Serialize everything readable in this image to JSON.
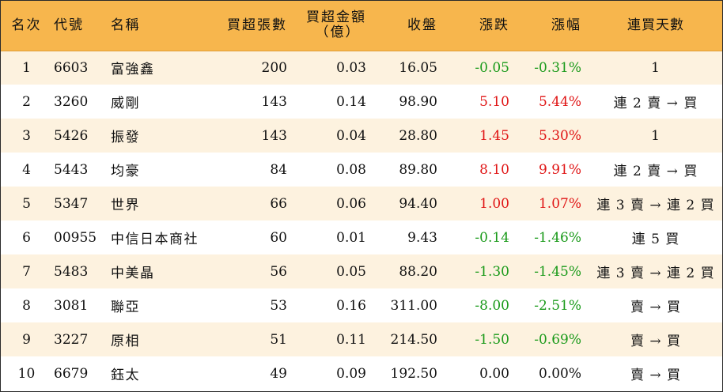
{
  "headers": {
    "rank": "名次",
    "code": "代號",
    "name": "名稱",
    "buy_over_lots": "買超張數",
    "buy_over_amount_line1": "買超金額",
    "buy_over_amount_line2": "（億）",
    "close": "收盤",
    "change": "漲跌",
    "change_pct": "漲幅",
    "streak": "連買天數"
  },
  "colors": {
    "header_bg": "#f7b64d",
    "odd_row_bg": "#fdf2df",
    "up": "#e01515",
    "down": "#1a9a1a",
    "flat": "#111111"
  },
  "rows": [
    {
      "rank": "1",
      "code": "6603",
      "name": "富強鑫",
      "lots": "200",
      "amount": "0.03",
      "close": "16.05",
      "change": "-0.05",
      "change_pct": "-0.31%",
      "direction": "down",
      "streak": "1"
    },
    {
      "rank": "2",
      "code": "3260",
      "name": "威剛",
      "lots": "143",
      "amount": "0.14",
      "close": "98.90",
      "change": "5.10",
      "change_pct": "5.44%",
      "direction": "up",
      "streak": "連 2 賣 → 買"
    },
    {
      "rank": "3",
      "code": "5426",
      "name": "振發",
      "lots": "143",
      "amount": "0.04",
      "close": "28.80",
      "change": "1.45",
      "change_pct": "5.30%",
      "direction": "up",
      "streak": "1"
    },
    {
      "rank": "4",
      "code": "5443",
      "name": "均豪",
      "lots": "84",
      "amount": "0.08",
      "close": "89.80",
      "change": "8.10",
      "change_pct": "9.91%",
      "direction": "up",
      "streak": "連 2 賣 → 買"
    },
    {
      "rank": "5",
      "code": "5347",
      "name": "世界",
      "lots": "66",
      "amount": "0.06",
      "close": "94.40",
      "change": "1.00",
      "change_pct": "1.07%",
      "direction": "up",
      "streak": "連 3 賣 → 連 2 買"
    },
    {
      "rank": "6",
      "code": "00955",
      "name": "中信日本商社",
      "lots": "60",
      "amount": "0.01",
      "close": "9.43",
      "change": "-0.14",
      "change_pct": "-1.46%",
      "direction": "down",
      "streak": "連 5 買"
    },
    {
      "rank": "7",
      "code": "5483",
      "name": "中美晶",
      "lots": "56",
      "amount": "0.05",
      "close": "88.20",
      "change": "-1.30",
      "change_pct": "-1.45%",
      "direction": "down",
      "streak": "連 3 賣 → 連 2 買"
    },
    {
      "rank": "8",
      "code": "3081",
      "name": "聯亞",
      "lots": "53",
      "amount": "0.16",
      "close": "311.00",
      "change": "-8.00",
      "change_pct": "-2.51%",
      "direction": "down",
      "streak": "賣 → 買"
    },
    {
      "rank": "9",
      "code": "3227",
      "name": "原相",
      "lots": "51",
      "amount": "0.11",
      "close": "214.50",
      "change": "-1.50",
      "change_pct": "-0.69%",
      "direction": "down",
      "streak": "賣 → 買"
    },
    {
      "rank": "10",
      "code": "6679",
      "name": "鈺太",
      "lots": "49",
      "amount": "0.09",
      "close": "192.50",
      "change": "0.00",
      "change_pct": "0.00%",
      "direction": "flat",
      "streak": "賣 → 買"
    }
  ]
}
